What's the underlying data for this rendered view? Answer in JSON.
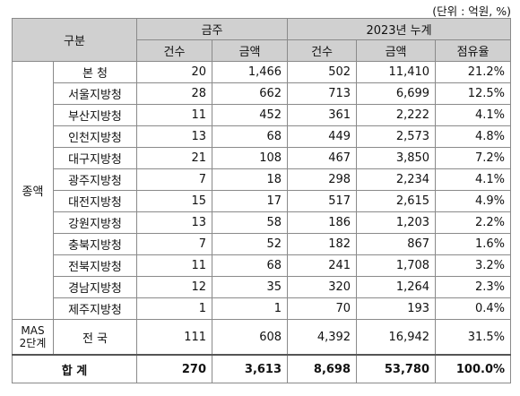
{
  "unit_note": "(단위 : 억원, %)",
  "headers": {
    "category": "구분",
    "this_week": "금주",
    "cumulative": "2023년 누계",
    "count": "건수",
    "amount": "금액",
    "share": "점유율"
  },
  "group_label": "종액",
  "mas_label": "MAS\n2단계",
  "rows": [
    {
      "name": "본   청",
      "w_count": "20",
      "w_amount": "1,466",
      "c_count": "502",
      "c_amount": "11,410",
      "share": "21.2%"
    },
    {
      "name": "서울지방청",
      "w_count": "28",
      "w_amount": "662",
      "c_count": "713",
      "c_amount": "6,699",
      "share": "12.5%"
    },
    {
      "name": "부산지방청",
      "w_count": "11",
      "w_amount": "452",
      "c_count": "361",
      "c_amount": "2,222",
      "share": "4.1%"
    },
    {
      "name": "인천지방청",
      "w_count": "13",
      "w_amount": "68",
      "c_count": "449",
      "c_amount": "2,573",
      "share": "4.8%"
    },
    {
      "name": "대구지방청",
      "w_count": "21",
      "w_amount": "108",
      "c_count": "467",
      "c_amount": "3,850",
      "share": "7.2%"
    },
    {
      "name": "광주지방청",
      "w_count": "7",
      "w_amount": "18",
      "c_count": "298",
      "c_amount": "2,234",
      "share": "4.1%"
    },
    {
      "name": "대전지방청",
      "w_count": "15",
      "w_amount": "17",
      "c_count": "517",
      "c_amount": "2,615",
      "share": "4.9%"
    },
    {
      "name": "강원지방청",
      "w_count": "13",
      "w_amount": "58",
      "c_count": "186",
      "c_amount": "1,203",
      "share": "2.2%"
    },
    {
      "name": "충북지방청",
      "w_count": "7",
      "w_amount": "52",
      "c_count": "182",
      "c_amount": "867",
      "share": "1.6%"
    },
    {
      "name": "전북지방청",
      "w_count": "11",
      "w_amount": "68",
      "c_count": "241",
      "c_amount": "1,708",
      "share": "3.2%"
    },
    {
      "name": "경남지방청",
      "w_count": "12",
      "w_amount": "35",
      "c_count": "320",
      "c_amount": "1,264",
      "share": "2.3%"
    },
    {
      "name": "제주지방청",
      "w_count": "1",
      "w_amount": "1",
      "c_count": "70",
      "c_amount": "193",
      "share": "0.4%"
    }
  ],
  "mas_row": {
    "name": "전   국",
    "w_count": "111",
    "w_amount": "608",
    "c_count": "4,392",
    "c_amount": "16,942",
    "share": "31.5%"
  },
  "total_row": {
    "label": "합   계",
    "w_count": "270",
    "w_amount": "3,613",
    "c_count": "8,698",
    "c_amount": "53,780",
    "share": "100.0%"
  }
}
